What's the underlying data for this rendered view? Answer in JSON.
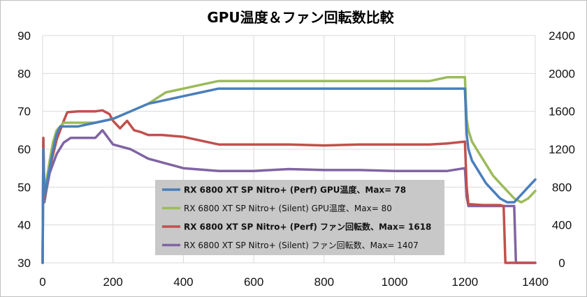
{
  "chart_data": {
    "type": "line",
    "title": "GPU温度＆ファン回転数比較",
    "xlim": [
      0,
      1400
    ],
    "x_ticks": [
      0,
      200,
      400,
      600,
      800,
      1000,
      1200,
      1400
    ],
    "ylim_left": [
      30,
      90
    ],
    "y_ticks_left": [
      30,
      40,
      50,
      60,
      70,
      80,
      90
    ],
    "ylim_right": [
      0,
      2400
    ],
    "y_ticks_right": [
      0,
      400,
      800,
      1200,
      1600,
      2000,
      2400
    ],
    "grid": true,
    "legend_position": "bottom-center",
    "series": [
      {
        "name": "RX 6800 XT SP Nitro+ (Perf) GPU温度、Max= 78",
        "axis": "left",
        "color": "#4a7ebb",
        "bold": true,
        "x": [
          0,
          2,
          5,
          10,
          20,
          30,
          40,
          50,
          60,
          80,
          100,
          150,
          200,
          250,
          300,
          350,
          400,
          450,
          500,
          600,
          700,
          800,
          900,
          1000,
          1100,
          1150,
          1180,
          1200,
          1205,
          1210,
          1220,
          1240,
          1260,
          1280,
          1300,
          1320,
          1340,
          1360,
          1380,
          1400
        ],
        "y": [
          30,
          60,
          48,
          50,
          55,
          60,
          64,
          66,
          66,
          66,
          66,
          67,
          68,
          70,
          72,
          73,
          74,
          75,
          76,
          76,
          76,
          76,
          76,
          76,
          76,
          76,
          76,
          76,
          64,
          60,
          57,
          54,
          51,
          49,
          47,
          46,
          46,
          48,
          50,
          52
        ]
      },
      {
        "name": "RX 6800 XT SP Nitro+ (Silent) GPU温度、Max= 80",
        "axis": "left",
        "color": "#9bbb59",
        "bold": false,
        "x": [
          0,
          2,
          5,
          10,
          20,
          30,
          40,
          50,
          60,
          80,
          100,
          150,
          200,
          250,
          300,
          350,
          400,
          450,
          500,
          600,
          700,
          800,
          900,
          1000,
          1100,
          1150,
          1180,
          1200,
          1205,
          1210,
          1220,
          1240,
          1260,
          1280,
          1300,
          1320,
          1340,
          1360,
          1380,
          1400
        ],
        "y": [
          30,
          60,
          48,
          51,
          57,
          62,
          65,
          66,
          67,
          67,
          67,
          67,
          68,
          70,
          72,
          75,
          76,
          77,
          78,
          78,
          78,
          78,
          78,
          78,
          78,
          79,
          79,
          79,
          68,
          65,
          62,
          59,
          56,
          53,
          51,
          49,
          47,
          46,
          47,
          49
        ]
      },
      {
        "name": "RX 6800 XT SP Nitro+ (Perf) ファン回転数、Max= 1618",
        "axis": "right",
        "color": "#c0504d",
        "bold": true,
        "x": [
          0,
          2,
          5,
          10,
          20,
          40,
          60,
          70,
          100,
          150,
          170,
          190,
          200,
          220,
          240,
          260,
          280,
          300,
          340,
          400,
          500,
          600,
          700,
          800,
          900,
          1000,
          1100,
          1150,
          1200,
          1205,
          1210,
          1250,
          1300,
          1310,
          1315,
          1320,
          1400
        ],
        "y": [
          0,
          1320,
          700,
          800,
          1000,
          1300,
          1500,
          1590,
          1600,
          1600,
          1610,
          1570,
          1500,
          1420,
          1500,
          1400,
          1380,
          1350,
          1350,
          1330,
          1250,
          1250,
          1250,
          1240,
          1250,
          1250,
          1250,
          1260,
          1280,
          800,
          620,
          610,
          610,
          600,
          0,
          0,
          0
        ]
      },
      {
        "name": "RX 6800 XT SP Nitro+ (Silent) ファン回転数、Max= 1407",
        "axis": "right",
        "color": "#8064a2",
        "bold": false,
        "x": [
          0,
          2,
          5,
          10,
          20,
          40,
          60,
          80,
          150,
          170,
          200,
          250,
          300,
          350,
          400,
          500,
          600,
          700,
          800,
          900,
          1000,
          1100,
          1150,
          1200,
          1205,
          1210,
          1300,
          1340,
          1345,
          1350,
          1400
        ],
        "y": [
          0,
          1300,
          640,
          750,
          950,
          1150,
          1270,
          1320,
          1320,
          1400,
          1250,
          1200,
          1100,
          1050,
          1000,
          970,
          970,
          990,
          980,
          980,
          970,
          970,
          970,
          1000,
          700,
          600,
          600,
          600,
          0,
          0,
          0
        ]
      }
    ]
  }
}
